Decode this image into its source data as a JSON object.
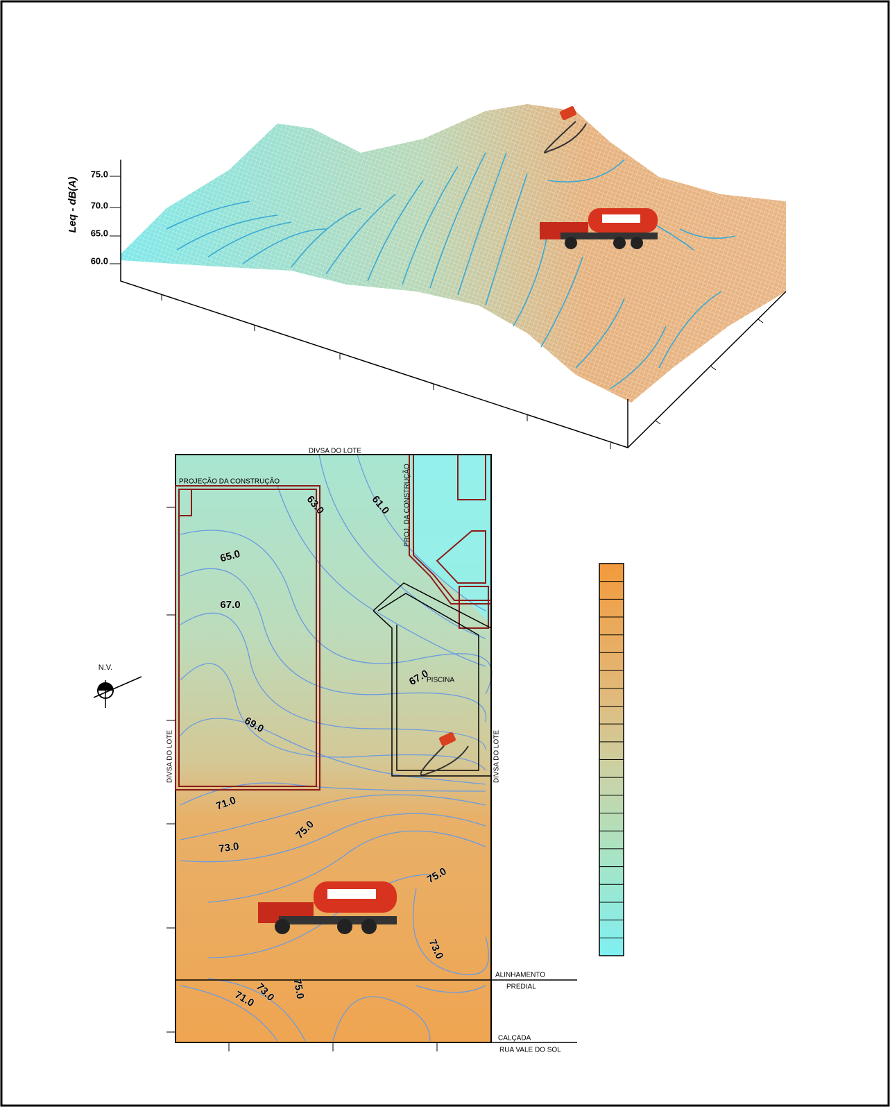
{
  "surface_plot": {
    "z_axis_label": "Leq - dB(A)",
    "z_ticks": [
      "75.0",
      "70.0",
      "65.0",
      "60.0"
    ]
  },
  "site_plan": {
    "north": "N.V.",
    "lot_boundary_top": "DIVSA DO LOTE",
    "lot_boundary_left": "DIVSA DO LOTE",
    "lot_boundary_right": "DIVSA DO LOTE",
    "building_projection": "PROJEÇÃO DA CONSTRUÇÃO",
    "building_projection_2": "PROJ. DA CONSTRUÇÃO",
    "pool": "PISCINA",
    "alignment": "ALINHAMENTO",
    "alignment_2": "PREDIAL",
    "sidewalk": "CALÇADA",
    "street": "RUA VALE DO SOL",
    "contour_labels": [
      "63.0",
      "61.0",
      "65.0",
      "67.0",
      "67.0",
      "69.0",
      "71.0",
      "73.0",
      "75.0",
      "75.0",
      "73.0",
      "75.0",
      "73.0",
      "71.0"
    ]
  }
}
